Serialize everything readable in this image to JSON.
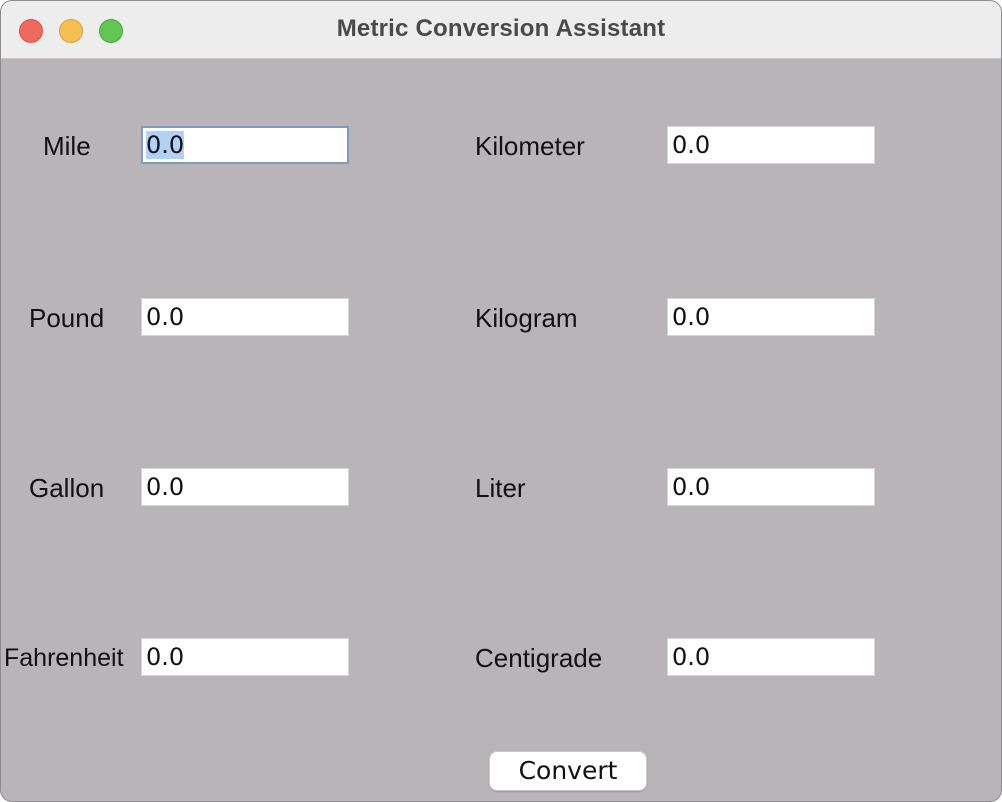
{
  "window": {
    "title": "Metric Conversion Assistant"
  },
  "rows": [
    {
      "left_label": "Mile",
      "left_value": "0.0",
      "right_label": "Kilometer",
      "right_value": "0.0"
    },
    {
      "left_label": "Pound",
      "left_value": "0.0",
      "right_label": "Kilogram",
      "right_value": "0.0"
    },
    {
      "left_label": "Gallon",
      "left_value": "0.0",
      "right_label": "Liter",
      "right_value": "0.0"
    },
    {
      "left_label": "Fahrenheit",
      "left_value": "0.0",
      "right_label": "Centigrade",
      "right_value": "0.0"
    }
  ],
  "actions": {
    "convert_label": "Convert"
  },
  "colors": {
    "window_background": "#b8b4b8",
    "selection_highlight": "#b3d0f6",
    "focus_ring": "#7f9bbd"
  }
}
